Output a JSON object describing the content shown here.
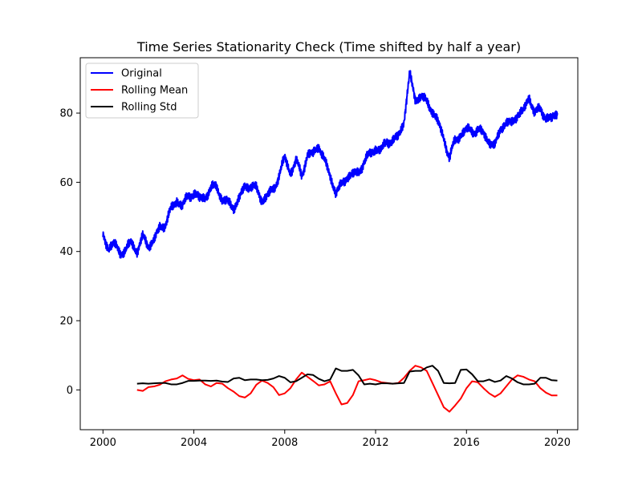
{
  "chart_data": {
    "type": "line",
    "title": "Time Series Stationarity Check (Time shifted by half a year)",
    "xlabel": "",
    "ylabel": "",
    "xlim": [
      1999.0,
      2020.9
    ],
    "ylim": [
      -11.5,
      96
    ],
    "xticks": [
      2000,
      2004,
      2008,
      2012,
      2016,
      2020
    ],
    "yticks": [
      0,
      20,
      40,
      60,
      80
    ],
    "grid": false,
    "legend_position": "top-left",
    "series": [
      {
        "name": "Original",
        "color": "#0000ff",
        "x": [
          2000.0,
          2000.25,
          2000.5,
          2000.75,
          2001.0,
          2001.25,
          2001.5,
          2001.75,
          2002.0,
          2002.25,
          2002.5,
          2002.75,
          2003.0,
          2003.25,
          2003.5,
          2003.75,
          2004.0,
          2004.25,
          2004.5,
          2004.75,
          2005.0,
          2005.25,
          2005.5,
          2005.75,
          2006.0,
          2006.25,
          2006.5,
          2006.75,
          2007.0,
          2007.25,
          2007.5,
          2007.75,
          2008.0,
          2008.25,
          2008.5,
          2008.75,
          2009.0,
          2009.25,
          2009.5,
          2009.75,
          2010.0,
          2010.25,
          2010.5,
          2010.75,
          2011.0,
          2011.25,
          2011.5,
          2011.75,
          2012.0,
          2012.25,
          2012.5,
          2012.75,
          2013.0,
          2013.25,
          2013.5,
          2013.75,
          2014.0,
          2014.25,
          2014.5,
          2014.75,
          2015.0,
          2015.25,
          2015.5,
          2015.75,
          2016.0,
          2016.25,
          2016.5,
          2016.75,
          2017.0,
          2017.25,
          2017.5,
          2017.75,
          2018.0,
          2018.25,
          2018.5,
          2018.75,
          2019.0,
          2019.25,
          2019.5,
          2019.75,
          2020.0
        ],
        "values": [
          45,
          41,
          42,
          40,
          40,
          43,
          40,
          44,
          42,
          43,
          47,
          48,
          52,
          55,
          53,
          56,
          57,
          55,
          56,
          58,
          59,
          55,
          54,
          53,
          55,
          59,
          59,
          58,
          55,
          56,
          58,
          62,
          67,
          63,
          66,
          62,
          68,
          68,
          71,
          66,
          62,
          57,
          59,
          62,
          62,
          63,
          66,
          68,
          70,
          69,
          72,
          72,
          73,
          78,
          91,
          84,
          85,
          83,
          81,
          77,
          73,
          67,
          72,
          74,
          75,
          75,
          75,
          74,
          72,
          70,
          76,
          77,
          77,
          80,
          80,
          85,
          80,
          81,
          79,
          78,
          80
        ]
      },
      {
        "name": "Rolling Mean",
        "color": "#ff0000",
        "x": [
          2001.5,
          2001.75,
          2002.0,
          2002.25,
          2002.5,
          2002.75,
          2003.0,
          2003.25,
          2003.5,
          2003.75,
          2004.0,
          2004.25,
          2004.5,
          2004.75,
          2005.0,
          2005.25,
          2005.5,
          2005.75,
          2006.0,
          2006.25,
          2006.5,
          2006.75,
          2007.0,
          2007.25,
          2007.5,
          2007.75,
          2008.0,
          2008.25,
          2008.5,
          2008.75,
          2009.0,
          2009.25,
          2009.5,
          2009.75,
          2010.0,
          2010.25,
          2010.5,
          2010.75,
          2011.0,
          2011.25,
          2011.5,
          2011.75,
          2012.0,
          2012.25,
          2012.5,
          2012.75,
          2013.0,
          2013.25,
          2013.5,
          2013.75,
          2014.0,
          2014.25,
          2014.5,
          2014.75,
          2015.0,
          2015.25,
          2015.5,
          2015.75,
          2016.0,
          2016.25,
          2016.5,
          2016.75,
          2017.0,
          2017.25,
          2017.5,
          2017.75,
          2018.0,
          2018.25,
          2018.5,
          2018.75,
          2019.0,
          2019.25,
          2019.5,
          2019.75,
          2020.0
        ],
        "values": [
          0,
          -0.3,
          0.8,
          1.0,
          1.5,
          2.5,
          3.0,
          3.3,
          4.2,
          3.2,
          2.8,
          3.0,
          1.6,
          1.0,
          2.0,
          1.8,
          0.5,
          -0.5,
          -1.8,
          -2.2,
          -1.0,
          1.5,
          2.7,
          2.0,
          0.8,
          -1.5,
          -1.0,
          0.5,
          3.0,
          5.0,
          3.8,
          2.6,
          1.3,
          1.6,
          2.5,
          -1.0,
          -4.2,
          -3.8,
          -1.5,
          2.5,
          2.8,
          3.2,
          2.8,
          2.2,
          2.0,
          1.8,
          2.0,
          3.5,
          5.5,
          7.0,
          6.5,
          5.5,
          2.0,
          -1.5,
          -5.0,
          -6.3,
          -4.5,
          -2.5,
          0.5,
          2.5,
          2.2,
          0.5,
          -1.0,
          -2.0,
          -1.0,
          1.0,
          3.0,
          4.2,
          3.8,
          3.0,
          2.5,
          0.5,
          -0.8,
          -1.6,
          -1.6
        ]
      },
      {
        "name": "Rolling Std",
        "color": "#000000",
        "x": [
          2001.5,
          2001.75,
          2002.0,
          2002.25,
          2002.5,
          2002.75,
          2003.0,
          2003.25,
          2003.5,
          2003.75,
          2004.0,
          2004.25,
          2004.5,
          2004.75,
          2005.0,
          2005.25,
          2005.5,
          2005.75,
          2006.0,
          2006.25,
          2006.5,
          2006.75,
          2007.0,
          2007.25,
          2007.5,
          2007.75,
          2008.0,
          2008.25,
          2008.5,
          2008.75,
          2009.0,
          2009.25,
          2009.5,
          2009.75,
          2010.0,
          2010.25,
          2010.5,
          2010.75,
          2011.0,
          2011.25,
          2011.5,
          2011.75,
          2012.0,
          2012.25,
          2012.5,
          2012.75,
          2013.0,
          2013.25,
          2013.5,
          2013.75,
          2014.0,
          2014.25,
          2014.5,
          2014.75,
          2015.0,
          2015.25,
          2015.5,
          2015.75,
          2016.0,
          2016.25,
          2016.5,
          2016.75,
          2017.0,
          2017.25,
          2017.5,
          2017.75,
          2018.0,
          2018.25,
          2018.5,
          2018.75,
          2019.0,
          2019.25,
          2019.5,
          2019.75,
          2020.0
        ],
        "values": [
          1.8,
          1.9,
          1.8,
          1.9,
          2.0,
          2.0,
          1.6,
          1.6,
          2.0,
          2.6,
          2.6,
          2.7,
          2.7,
          2.6,
          2.7,
          2.4,
          2.3,
          3.3,
          3.5,
          2.8,
          3.0,
          3.0,
          2.8,
          2.9,
          3.3,
          4.0,
          3.5,
          2.2,
          2.5,
          3.5,
          4.5,
          4.3,
          3.2,
          2.5,
          3.0,
          6.2,
          5.5,
          5.5,
          5.8,
          4.2,
          1.6,
          1.8,
          1.6,
          1.9,
          1.9,
          1.8,
          1.9,
          2.0,
          5.3,
          5.5,
          5.5,
          6.5,
          7.0,
          5.5,
          2.0,
          1.9,
          2.0,
          5.8,
          5.9,
          4.5,
          2.5,
          2.5,
          3.0,
          2.3,
          2.7,
          4.0,
          3.3,
          2.2,
          1.6,
          1.6,
          1.8,
          3.5,
          3.5,
          2.8,
          2.7
        ]
      }
    ]
  }
}
